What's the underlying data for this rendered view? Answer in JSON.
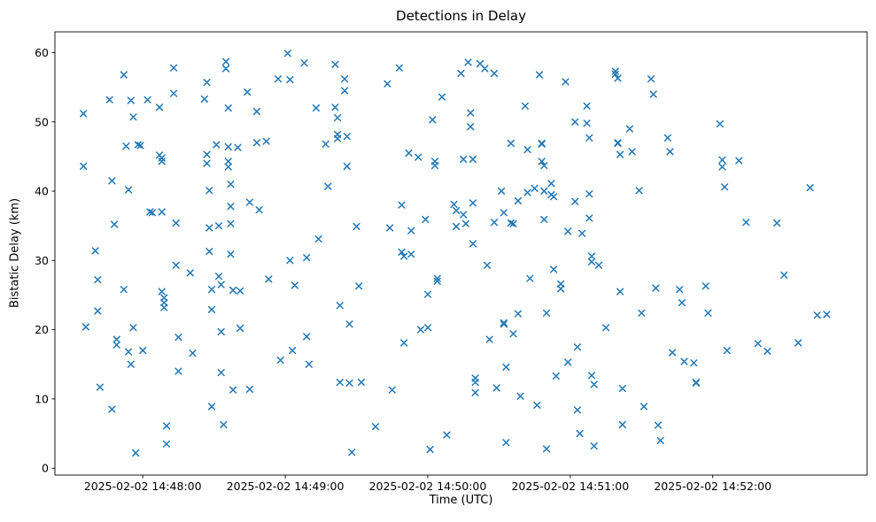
{
  "chart_data": {
    "type": "scatter",
    "title": "Detections in Delay",
    "xlabel": "Time (UTC)",
    "ylabel": "Bistatic Delay (km)",
    "marker": "x",
    "marker_color": "#1f77b4",
    "background": "#ffffff",
    "grid": false,
    "legend": null,
    "x_encoding": "seconds relative to 2025-02-02 14:48:00 UTC",
    "xlim": [
      -37,
      305
    ],
    "ylim": [
      -1,
      63
    ],
    "yticks": [
      0,
      10,
      20,
      30,
      40,
      50,
      60
    ],
    "xticks": [
      {
        "value": 0,
        "label": "2025-02-02 14:48:00"
      },
      {
        "value": 60,
        "label": "2025-02-02 14:49:00"
      },
      {
        "value": 120,
        "label": "2025-02-02 14:50:00"
      },
      {
        "value": 180,
        "label": "2025-02-02 14:51:00"
      },
      {
        "value": 240,
        "label": "2025-02-02 14:52:00"
      }
    ],
    "points": [
      [
        -25,
        51.2
      ],
      [
        -25,
        43.6
      ],
      [
        -24,
        20.4
      ],
      [
        -20,
        31.4
      ],
      [
        -19,
        27.2
      ],
      [
        -19,
        22.7
      ],
      [
        -18,
        11.7
      ],
      [
        -14,
        53.2
      ],
      [
        -13,
        41.5
      ],
      [
        -13,
        8.5
      ],
      [
        -12,
        35.2
      ],
      [
        -11,
        18.6
      ],
      [
        -11,
        17.8
      ],
      [
        -8,
        56.8
      ],
      [
        -8,
        25.8
      ],
      [
        -7,
        46.5
      ],
      [
        -6,
        40.2
      ],
      [
        -6,
        16.8
      ],
      [
        -5,
        53.1
      ],
      [
        -5,
        15.0
      ],
      [
        -4,
        50.7
      ],
      [
        -4,
        20.3
      ],
      [
        -3,
        2.2
      ],
      [
        -2,
        46.7
      ],
      [
        -1,
        46.6
      ],
      [
        0,
        17.0
      ],
      [
        2,
        53.2
      ],
      [
        3,
        37.0
      ],
      [
        4,
        36.9
      ],
      [
        7,
        52.1
      ],
      [
        7,
        45.2
      ],
      [
        8,
        44.8
      ],
      [
        8,
        44.3
      ],
      [
        8,
        37.0
      ],
      [
        8,
        25.5
      ],
      [
        9,
        24.6
      ],
      [
        9,
        23.9
      ],
      [
        9,
        23.2
      ],
      [
        10,
        6.1
      ],
      [
        10,
        3.5
      ],
      [
        13,
        57.8
      ],
      [
        13,
        54.1
      ],
      [
        14,
        35.4
      ],
      [
        14,
        29.3
      ],
      [
        15,
        18.9
      ],
      [
        15,
        14.0
      ],
      [
        20,
        28.2
      ],
      [
        21,
        16.6
      ],
      [
        26,
        53.3
      ],
      [
        27,
        55.7
      ],
      [
        27,
        45.3
      ],
      [
        27,
        44.0
      ],
      [
        28,
        40.1
      ],
      [
        28,
        34.7
      ],
      [
        28,
        31.3
      ],
      [
        29,
        25.8
      ],
      [
        29,
        22.9
      ],
      [
        29,
        8.9
      ],
      [
        31,
        46.7
      ],
      [
        32,
        35.0
      ],
      [
        32,
        27.7
      ],
      [
        33,
        26.5
      ],
      [
        33,
        19.7
      ],
      [
        33,
        13.8
      ],
      [
        34,
        6.3
      ],
      [
        35,
        58.7
      ],
      [
        35,
        57.7
      ],
      [
        36,
        52.0
      ],
      [
        36,
        46.4
      ],
      [
        36,
        44.3
      ],
      [
        36,
        43.5
      ],
      [
        37,
        41.0
      ],
      [
        37,
        37.8
      ],
      [
        37,
        35.3
      ],
      [
        37,
        30.9
      ],
      [
        38,
        25.7
      ],
      [
        38,
        11.3
      ],
      [
        40,
        46.3
      ],
      [
        41,
        25.6
      ],
      [
        41,
        20.2
      ],
      [
        44,
        54.3
      ],
      [
        45,
        38.4
      ],
      [
        45,
        11.4
      ],
      [
        48,
        51.5
      ],
      [
        48,
        47.0
      ],
      [
        49,
        37.3
      ],
      [
        52,
        47.2
      ],
      [
        53,
        27.3
      ],
      [
        57,
        56.2
      ],
      [
        58,
        15.6
      ],
      [
        61,
        59.9
      ],
      [
        62,
        56.1
      ],
      [
        62,
        30.0
      ],
      [
        63,
        17.0
      ],
      [
        64,
        26.4
      ],
      [
        68,
        58.5
      ],
      [
        69,
        30.4
      ],
      [
        69,
        19.0
      ],
      [
        70,
        15.0
      ],
      [
        73,
        52.0
      ],
      [
        74,
        33.1
      ],
      [
        77,
        46.8
      ],
      [
        78,
        40.7
      ],
      [
        81,
        58.3
      ],
      [
        81,
        52.1
      ],
      [
        82,
        50.6
      ],
      [
        82,
        48.2
      ],
      [
        82,
        47.6
      ],
      [
        83,
        23.5
      ],
      [
        83,
        12.4
      ],
      [
        85,
        56.2
      ],
      [
        85,
        54.5
      ],
      [
        86,
        47.9
      ],
      [
        86,
        43.6
      ],
      [
        87,
        20.8
      ],
      [
        87,
        12.3
      ],
      [
        88,
        2.3
      ],
      [
        90,
        34.9
      ],
      [
        91,
        26.3
      ],
      [
        92,
        12.4
      ],
      [
        98,
        6.0
      ],
      [
        103,
        55.5
      ],
      [
        104,
        34.7
      ],
      [
        105,
        11.3
      ],
      [
        108,
        57.8
      ],
      [
        109,
        38.0
      ],
      [
        109,
        31.2
      ],
      [
        110,
        30.6
      ],
      [
        110,
        18.1
      ],
      [
        112,
        45.5
      ],
      [
        113,
        34.3
      ],
      [
        113,
        30.9
      ],
      [
        116,
        44.9
      ],
      [
        117,
        20.0
      ],
      [
        119,
        35.9
      ],
      [
        120,
        25.1
      ],
      [
        120,
        20.3
      ],
      [
        121,
        2.7
      ],
      [
        122,
        50.3
      ],
      [
        123,
        44.3
      ],
      [
        123,
        43.7
      ],
      [
        124,
        27.4
      ],
      [
        124,
        27.0
      ],
      [
        126,
        53.6
      ],
      [
        128,
        4.8
      ],
      [
        131,
        38.1
      ],
      [
        132,
        37.2
      ],
      [
        132,
        34.9
      ],
      [
        134,
        57.0
      ],
      [
        135,
        44.6
      ],
      [
        135,
        36.6
      ],
      [
        136,
        35.3
      ],
      [
        137,
        58.6
      ],
      [
        138,
        51.3
      ],
      [
        138,
        49.3
      ],
      [
        139,
        44.6
      ],
      [
        139,
        38.3
      ],
      [
        139,
        32.4
      ],
      [
        140,
        13.0
      ],
      [
        140,
        12.4
      ],
      [
        140,
        10.9
      ],
      [
        142,
        58.4
      ],
      [
        144,
        57.7
      ],
      [
        145,
        29.3
      ],
      [
        146,
        18.6
      ],
      [
        148,
        57.0
      ],
      [
        148,
        35.5
      ],
      [
        149,
        11.6
      ],
      [
        151,
        40.0
      ],
      [
        152,
        36.9
      ],
      [
        152,
        21.0
      ],
      [
        152,
        20.8
      ],
      [
        153,
        14.6
      ],
      [
        153,
        3.7
      ],
      [
        155,
        46.9
      ],
      [
        155,
        35.4
      ],
      [
        156,
        35.3
      ],
      [
        156,
        19.4
      ],
      [
        158,
        38.6
      ],
      [
        158,
        22.3
      ],
      [
        159,
        10.4
      ],
      [
        161,
        52.3
      ],
      [
        162,
        46.0
      ],
      [
        162,
        39.8
      ],
      [
        163,
        27.4
      ],
      [
        165,
        40.4
      ],
      [
        166,
        9.1
      ],
      [
        167,
        56.8
      ],
      [
        168,
        46.9
      ],
      [
        168,
        46.8
      ],
      [
        168,
        44.3
      ],
      [
        169,
        43.7
      ],
      [
        169,
        40.0
      ],
      [
        169,
        35.9
      ],
      [
        170,
        22.4
      ],
      [
        170,
        2.8
      ],
      [
        172,
        41.1
      ],
      [
        172,
        39.5
      ],
      [
        173,
        39.2
      ],
      [
        173,
        28.7
      ],
      [
        174,
        13.3
      ],
      [
        176,
        26.6
      ],
      [
        176,
        25.9
      ],
      [
        178,
        55.8
      ],
      [
        179,
        34.2
      ],
      [
        179,
        15.3
      ],
      [
        182,
        50.0
      ],
      [
        182,
        38.5
      ],
      [
        183,
        17.5
      ],
      [
        183,
        8.4
      ],
      [
        184,
        5.0
      ],
      [
        185,
        33.9
      ],
      [
        187,
        52.3
      ],
      [
        187,
        49.8
      ],
      [
        188,
        47.7
      ],
      [
        188,
        39.6
      ],
      [
        188,
        36.1
      ],
      [
        189,
        30.6
      ],
      [
        189,
        29.8
      ],
      [
        189,
        13.4
      ],
      [
        190,
        12.1
      ],
      [
        190,
        3.2
      ],
      [
        192,
        29.3
      ],
      [
        195,
        20.3
      ],
      [
        199,
        57.3
      ],
      [
        199,
        56.9
      ],
      [
        200,
        56.3
      ],
      [
        200,
        47.0
      ],
      [
        200,
        46.9
      ],
      [
        201,
        45.3
      ],
      [
        201,
        25.5
      ],
      [
        202,
        11.5
      ],
      [
        202,
        6.3
      ],
      [
        205,
        49.0
      ],
      [
        206,
        45.7
      ],
      [
        209,
        40.1
      ],
      [
        210,
        22.4
      ],
      [
        211,
        8.9
      ],
      [
        214,
        56.2
      ],
      [
        215,
        54.0
      ],
      [
        216,
        26.0
      ],
      [
        217,
        6.2
      ],
      [
        218,
        4.0
      ],
      [
        221,
        47.7
      ],
      [
        222,
        45.7
      ],
      [
        223,
        16.7
      ],
      [
        226,
        25.8
      ],
      [
        227,
        23.9
      ],
      [
        228,
        15.4
      ],
      [
        232,
        15.2
      ],
      [
        233,
        12.4
      ],
      [
        233,
        12.3
      ],
      [
        237,
        26.3
      ],
      [
        238,
        22.4
      ],
      [
        243,
        49.7
      ],
      [
        244,
        44.5
      ],
      [
        244,
        43.5
      ],
      [
        245,
        40.6
      ],
      [
        246,
        17.0
      ],
      [
        251,
        44.4
      ],
      [
        254,
        35.5
      ],
      [
        259,
        18.0
      ],
      [
        263,
        16.9
      ],
      [
        267,
        35.4
      ],
      [
        270,
        27.9
      ],
      [
        276,
        18.1
      ],
      [
        281,
        40.5
      ],
      [
        284,
        22.1
      ],
      [
        288,
        22.2
      ]
    ]
  }
}
